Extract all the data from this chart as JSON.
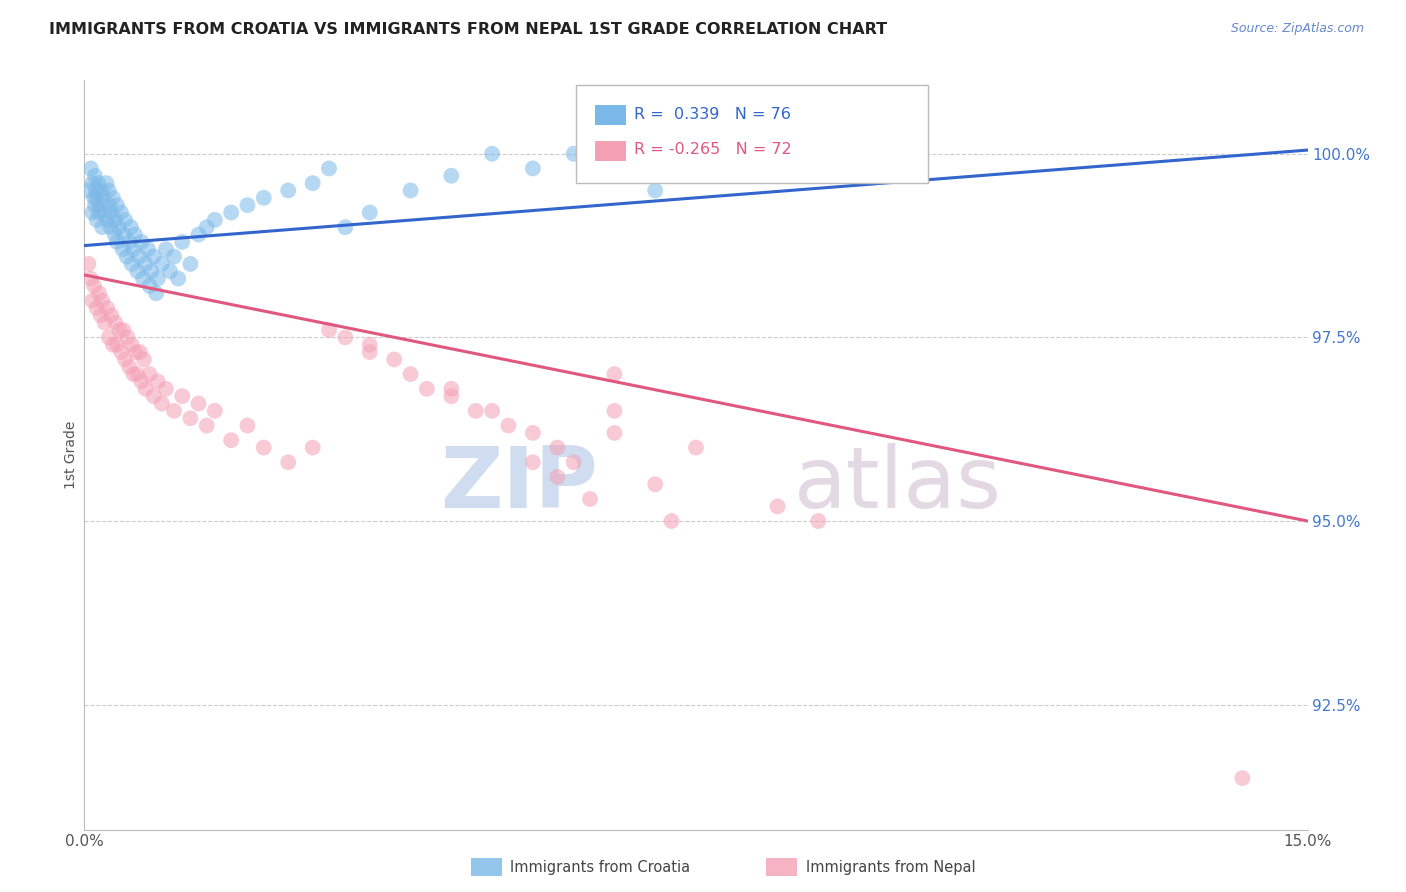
{
  "title": "IMMIGRANTS FROM CROATIA VS IMMIGRANTS FROM NEPAL 1ST GRADE CORRELATION CHART",
  "source": "Source: ZipAtlas.com",
  "ylabel": "1st Grade",
  "xlim": [
    0.0,
    15.0
  ],
  "ylim": [
    90.8,
    101.0
  ],
  "croatia_R": 0.339,
  "croatia_N": 76,
  "nepal_R": -0.265,
  "nepal_N": 72,
  "croatia_color": "#7ab8e8",
  "nepal_color": "#f4a0b5",
  "trendline_croatia_color": "#3366cc",
  "trendline_nepal_color": "#e05880",
  "watermark_zip": "ZIP",
  "watermark_atlas": "atlas",
  "legend_croatia": "Immigrants from Croatia",
  "legend_nepal": "Immigrants from Nepal",
  "ytick_vals": [
    92.5,
    95.0,
    97.5,
    100.0
  ],
  "croatia_trendline": [
    98.75,
    100.05
  ],
  "nepal_trendline": [
    98.35,
    95.0
  ],
  "croatia_x": [
    0.05,
    0.08,
    0.1,
    0.1,
    0.12,
    0.13,
    0.13,
    0.14,
    0.15,
    0.15,
    0.17,
    0.18,
    0.2,
    0.2,
    0.22,
    0.23,
    0.25,
    0.27,
    0.28,
    0.3,
    0.3,
    0.32,
    0.33,
    0.35,
    0.37,
    0.38,
    0.4,
    0.4,
    0.42,
    0.45,
    0.47,
    0.48,
    0.5,
    0.52,
    0.55,
    0.57,
    0.58,
    0.6,
    0.62,
    0.65,
    0.67,
    0.7,
    0.72,
    0.75,
    0.78,
    0.8,
    0.82,
    0.85,
    0.88,
    0.9,
    0.95,
    1.0,
    1.05,
    1.1,
    1.15,
    1.2,
    1.3,
    1.4,
    1.5,
    1.6,
    1.8,
    2.0,
    2.2,
    2.5,
    2.8,
    3.0,
    3.2,
    3.5,
    4.0,
    4.5,
    5.0,
    5.5,
    6.0,
    7.0,
    8.5,
    10.0
  ],
  "croatia_y": [
    99.5,
    99.8,
    99.2,
    99.6,
    99.4,
    99.7,
    99.3,
    99.5,
    99.1,
    99.4,
    99.6,
    99.2,
    99.3,
    99.5,
    99.0,
    99.4,
    99.2,
    99.6,
    99.1,
    99.3,
    99.5,
    99.0,
    99.2,
    99.4,
    98.9,
    99.1,
    99.3,
    98.8,
    99.0,
    99.2,
    98.7,
    98.9,
    99.1,
    98.6,
    98.8,
    99.0,
    98.5,
    98.7,
    98.9,
    98.4,
    98.6,
    98.8,
    98.3,
    98.5,
    98.7,
    98.2,
    98.4,
    98.6,
    98.1,
    98.3,
    98.5,
    98.7,
    98.4,
    98.6,
    98.3,
    98.8,
    98.5,
    98.9,
    99.0,
    99.1,
    99.2,
    99.3,
    99.4,
    99.5,
    99.6,
    99.8,
    99.0,
    99.2,
    99.5,
    99.7,
    100.0,
    99.8,
    100.0,
    99.5,
    99.8,
    100.0
  ],
  "nepal_x": [
    0.05,
    0.08,
    0.1,
    0.12,
    0.15,
    0.18,
    0.2,
    0.22,
    0.25,
    0.28,
    0.3,
    0.33,
    0.35,
    0.38,
    0.4,
    0.43,
    0.45,
    0.48,
    0.5,
    0.53,
    0.55,
    0.58,
    0.6,
    0.63,
    0.65,
    0.68,
    0.7,
    0.73,
    0.75,
    0.8,
    0.85,
    0.9,
    0.95,
    1.0,
    1.1,
    1.2,
    1.3,
    1.4,
    1.5,
    1.6,
    1.8,
    2.0,
    2.2,
    2.5,
    2.8,
    3.0,
    3.2,
    3.5,
    3.8,
    4.0,
    4.5,
    5.0,
    5.5,
    6.5,
    6.5,
    7.5,
    5.5,
    5.8,
    6.2,
    7.2,
    8.5,
    9.0,
    4.5,
    5.2,
    6.0,
    4.8,
    5.8,
    7.0,
    3.5,
    4.2,
    14.2,
    6.5
  ],
  "nepal_y": [
    98.5,
    98.3,
    98.0,
    98.2,
    97.9,
    98.1,
    97.8,
    98.0,
    97.7,
    97.9,
    97.5,
    97.8,
    97.4,
    97.7,
    97.4,
    97.6,
    97.3,
    97.6,
    97.2,
    97.5,
    97.1,
    97.4,
    97.0,
    97.3,
    97.0,
    97.3,
    96.9,
    97.2,
    96.8,
    97.0,
    96.7,
    96.9,
    96.6,
    96.8,
    96.5,
    96.7,
    96.4,
    96.6,
    96.3,
    96.5,
    96.1,
    96.3,
    96.0,
    95.8,
    96.0,
    97.6,
    97.5,
    97.4,
    97.2,
    97.0,
    96.8,
    96.5,
    96.2,
    97.0,
    96.5,
    96.0,
    95.8,
    95.6,
    95.3,
    95.0,
    95.2,
    95.0,
    96.7,
    96.3,
    95.8,
    96.5,
    96.0,
    95.5,
    97.3,
    96.8,
    91.5,
    96.2
  ]
}
